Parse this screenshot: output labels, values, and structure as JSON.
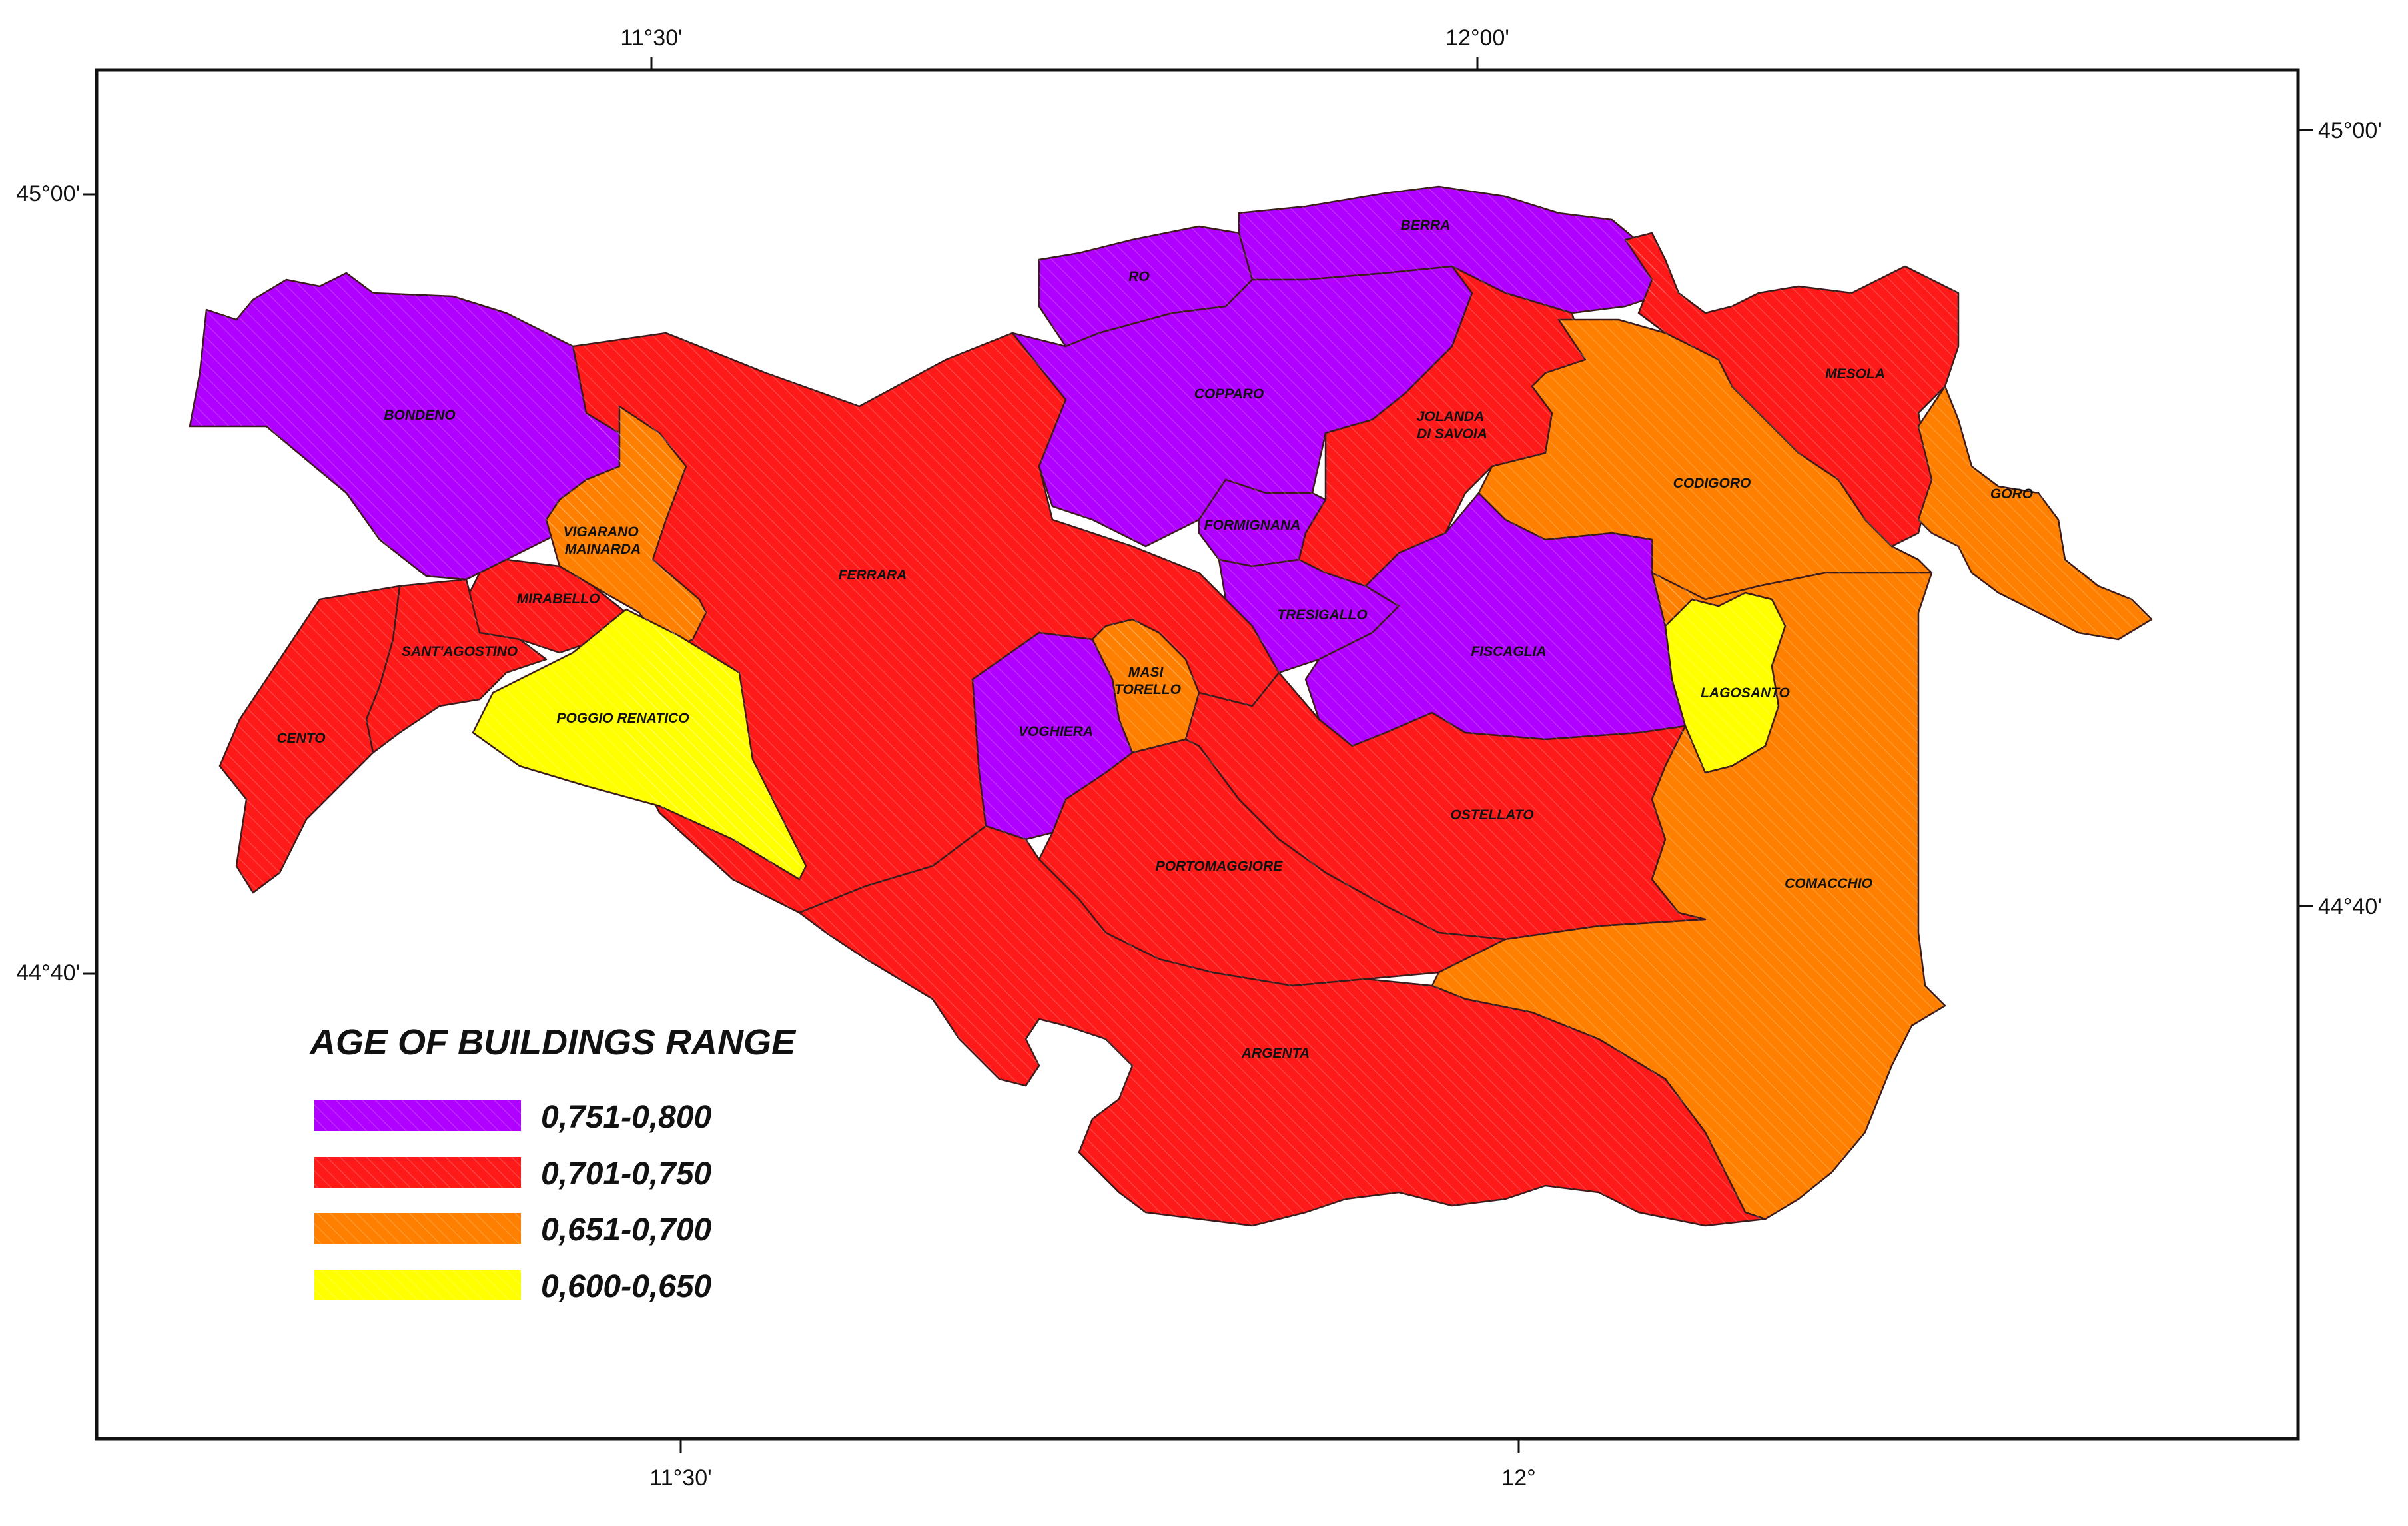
{
  "map": {
    "top_ticks": [
      "11°30'",
      "12°00'"
    ],
    "bottom_ticks": [
      "11°30'",
      "12°"
    ],
    "left_ticks": [
      "45°00'",
      "44°40'"
    ],
    "right_ticks": [
      "45°00'",
      "44°40'"
    ]
  },
  "legend": {
    "title": "AGE OF BUILDINGS RANGE",
    "items": [
      {
        "label": "0,751-0,800",
        "color": "#b000ff"
      },
      {
        "label": "0,701-0,750",
        "color": "#ff1a1a"
      },
      {
        "label": "0,651-0,700",
        "color": "#ff8000"
      },
      {
        "label": "0,600-0,650",
        "color": "#ffff00"
      }
    ]
  },
  "municipalities": [
    {
      "name": "BONDENO",
      "range": "0,751-0,800"
    },
    {
      "name": "VIGARANO MAINARDA",
      "range": "0,651-0,700"
    },
    {
      "name": "MIRABELLO",
      "range": "0,701-0,750"
    },
    {
      "name": "SANT'AGOSTINO",
      "range": "0,701-0,750"
    },
    {
      "name": "CENTO",
      "range": "0,701-0,750"
    },
    {
      "name": "POGGIO RENATICO",
      "range": "0,600-0,650"
    },
    {
      "name": "FERRARA",
      "range": "0,701-0,750"
    },
    {
      "name": "RO",
      "range": "0,751-0,800"
    },
    {
      "name": "BERRA",
      "range": "0,751-0,800"
    },
    {
      "name": "COPPARO",
      "range": "0,751-0,800"
    },
    {
      "name": "JOLANDA DI SAVOIA",
      "range": "0,701-0,750"
    },
    {
      "name": "FORMIGNANA",
      "range": "0,751-0,800"
    },
    {
      "name": "TRESIGALLO",
      "range": "0,751-0,800"
    },
    {
      "name": "MASI TORELLO",
      "range": "0,651-0,700"
    },
    {
      "name": "VOGHIERA",
      "range": "0,751-0,800"
    },
    {
      "name": "FISCAGLIA",
      "range": "0,751-0,800"
    },
    {
      "name": "MESOLA",
      "range": "0,701-0,750"
    },
    {
      "name": "CODIGORO",
      "range": "0,651-0,700"
    },
    {
      "name": "GORO",
      "range": "0,651-0,700"
    },
    {
      "name": "LAGOSANTO",
      "range": "0,600-0,650"
    },
    {
      "name": "OSTELLATO",
      "range": "0,701-0,750"
    },
    {
      "name": "PORTOMAGGIORE",
      "range": "0,701-0,750"
    },
    {
      "name": "COMACCHIO",
      "range": "0,651-0,700"
    },
    {
      "name": "ARGENTA",
      "range": "0,701-0,750"
    }
  ]
}
